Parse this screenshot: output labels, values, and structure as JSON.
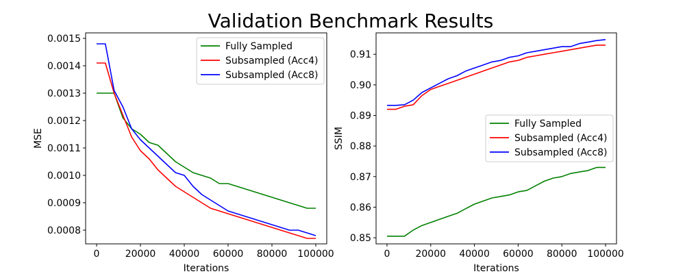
{
  "figure": {
    "title": "Validation Benchmark Results"
  },
  "chart_data": [
    {
      "type": "line",
      "title": "",
      "xlabel": "Iterations",
      "ylabel": "MSE",
      "xlim": [
        -5000,
        105000
      ],
      "ylim": [
        0.00075,
        0.00152
      ],
      "xticks": [
        0,
        20000,
        40000,
        60000,
        80000,
        100000
      ],
      "xtick_labels": [
        "0",
        "20000",
        "40000",
        "60000",
        "80000",
        "100000"
      ],
      "yticks": [
        0.0008,
        0.0009,
        0.001,
        0.0011,
        0.0012,
        0.0013,
        0.0014,
        0.0015
      ],
      "ytick_labels": [
        "0.0008",
        "0.0009",
        "0.0010",
        "0.0011",
        "0.0012",
        "0.0013",
        "0.0014",
        "0.0015"
      ],
      "legend_position": "upper-right",
      "grid": false,
      "x": [
        0,
        4000,
        8000,
        12000,
        16000,
        20000,
        24000,
        28000,
        32000,
        36000,
        40000,
        44000,
        48000,
        52000,
        56000,
        60000,
        64000,
        68000,
        72000,
        76000,
        80000,
        84000,
        88000,
        92000,
        96000,
        100000
      ],
      "series": [
        {
          "name": "Fully Sampled",
          "color": "#008000",
          "values": [
            0.0013,
            0.0013,
            0.0013,
            0.00121,
            0.00117,
            0.00115,
            0.00112,
            0.00111,
            0.00108,
            0.00105,
            0.00103,
            0.00101,
            0.001,
            0.00099,
            0.00097,
            0.00097,
            0.00096,
            0.00095,
            0.00094,
            0.00093,
            0.00092,
            0.00091,
            0.0009,
            0.00089,
            0.00088,
            0.00088
          ]
        },
        {
          "name": "Subsampled (Acc4)",
          "color": "#ff0000",
          "values": [
            0.00141,
            0.00141,
            0.0013,
            0.00122,
            0.00114,
            0.00109,
            0.00106,
            0.00102,
            0.00099,
            0.00096,
            0.00094,
            0.00092,
            0.0009,
            0.00088,
            0.00087,
            0.00086,
            0.00085,
            0.00084,
            0.00083,
            0.00082,
            0.00081,
            0.0008,
            0.00079,
            0.00078,
            0.00077,
            0.00077
          ]
        },
        {
          "name": "Subsampled (Acc8)",
          "color": "#0000ff",
          "values": [
            0.00148,
            0.00148,
            0.00131,
            0.00125,
            0.00117,
            0.00113,
            0.0011,
            0.00107,
            0.00104,
            0.00101,
            0.001,
            0.00096,
            0.00093,
            0.00091,
            0.00089,
            0.00087,
            0.00086,
            0.00085,
            0.00084,
            0.00083,
            0.00082,
            0.00081,
            0.0008,
            0.0008,
            0.00079,
            0.00078
          ]
        }
      ]
    },
    {
      "type": "line",
      "title": "",
      "xlabel": "Iterations",
      "ylabel": "SSIM",
      "xlim": [
        -5000,
        105000
      ],
      "ylim": [
        0.848,
        0.917
      ],
      "xticks": [
        0,
        20000,
        40000,
        60000,
        80000,
        100000
      ],
      "xtick_labels": [
        "0",
        "20000",
        "40000",
        "60000",
        "80000",
        "100000"
      ],
      "yticks": [
        0.85,
        0.86,
        0.87,
        0.88,
        0.89,
        0.9,
        0.91
      ],
      "ytick_labels": [
        "0.85",
        "0.86",
        "0.87",
        "0.88",
        "0.89",
        "0.90",
        "0.91"
      ],
      "legend_position": "center-right",
      "grid": false,
      "x": [
        0,
        4000,
        8000,
        12000,
        16000,
        20000,
        24000,
        28000,
        32000,
        36000,
        40000,
        44000,
        48000,
        52000,
        56000,
        60000,
        64000,
        68000,
        72000,
        76000,
        80000,
        84000,
        88000,
        92000,
        96000,
        100000
      ],
      "series": [
        {
          "name": "Fully Sampled",
          "color": "#008000",
          "values": [
            0.8505,
            0.8505,
            0.8505,
            0.8525,
            0.854,
            0.855,
            0.856,
            0.857,
            0.858,
            0.8595,
            0.861,
            0.862,
            0.863,
            0.8635,
            0.864,
            0.865,
            0.8655,
            0.867,
            0.8685,
            0.8695,
            0.87,
            0.871,
            0.8715,
            0.872,
            0.873,
            0.873
          ]
        },
        {
          "name": "Subsampled (Acc4)",
          "color": "#ff0000",
          "values": [
            0.892,
            0.892,
            0.893,
            0.8935,
            0.8965,
            0.8985,
            0.8995,
            0.9005,
            0.9015,
            0.9025,
            0.9035,
            0.9045,
            0.9055,
            0.9065,
            0.9075,
            0.908,
            0.909,
            0.9095,
            0.91,
            0.9105,
            0.911,
            0.9115,
            0.912,
            0.9125,
            0.913,
            0.913
          ]
        },
        {
          "name": "Subsampled (Acc8)",
          "color": "#0000ff",
          "values": [
            0.8933,
            0.8933,
            0.8935,
            0.895,
            0.8975,
            0.899,
            0.9005,
            0.902,
            0.903,
            0.9045,
            0.9055,
            0.9065,
            0.9075,
            0.908,
            0.909,
            0.9095,
            0.9105,
            0.911,
            0.9115,
            0.912,
            0.9125,
            0.9125,
            0.9135,
            0.914,
            0.9145,
            0.9148
          ]
        }
      ]
    }
  ]
}
